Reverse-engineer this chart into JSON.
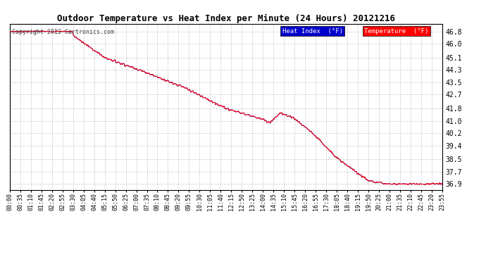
{
  "title": "Outdoor Temperature vs Heat Index per Minute (24 Hours) 20121216",
  "copyright_text": "Copyright 2012 Cartronics.com",
  "background_color": "#ffffff",
  "plot_bg_color": "#ffffff",
  "grid_color": "#bbbbbb",
  "line_color_temp": "#ff0000",
  "line_color_heat": "#0000cc",
  "ylim": [
    36.5,
    47.3
  ],
  "yticks": [
    36.9,
    37.7,
    38.5,
    39.4,
    40.2,
    41.0,
    41.8,
    42.7,
    43.5,
    44.3,
    45.1,
    46.0,
    46.8
  ],
  "legend_heat_label": "Heat Index  (°F)",
  "legend_temp_label": "Temperature  (°F)",
  "xtick_labels": [
    "00:00",
    "00:35",
    "01:10",
    "01:45",
    "02:20",
    "02:55",
    "03:30",
    "04:05",
    "04:40",
    "05:15",
    "05:50",
    "06:25",
    "07:00",
    "07:35",
    "08:10",
    "08:45",
    "09:20",
    "09:55",
    "10:30",
    "11:05",
    "11:40",
    "12:15",
    "12:50",
    "13:25",
    "14:00",
    "14:35",
    "15:10",
    "15:45",
    "16:20",
    "16:55",
    "17:30",
    "18:05",
    "18:40",
    "19:15",
    "19:50",
    "20:25",
    "21:00",
    "21:35",
    "22:10",
    "22:45",
    "23:20",
    "23:55"
  ],
  "keypoints_t": [
    0.0,
    0.145,
    0.148,
    0.22,
    0.3,
    0.4,
    0.5,
    0.585,
    0.6,
    0.625,
    0.655,
    0.7,
    0.76,
    0.83,
    0.87,
    1.0
  ],
  "keypoints_v": [
    46.8,
    46.8,
    46.5,
    45.1,
    44.3,
    43.2,
    41.8,
    41.1,
    40.85,
    41.5,
    41.2,
    40.2,
    38.5,
    37.1,
    36.9,
    36.9
  ]
}
